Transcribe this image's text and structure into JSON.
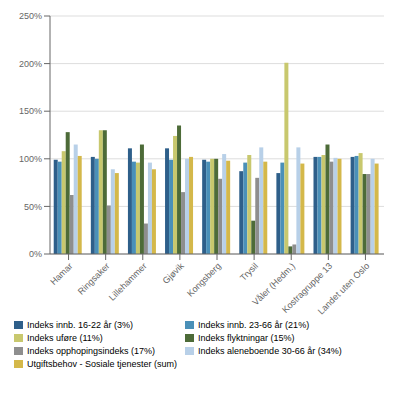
{
  "chart_data": {
    "type": "bar",
    "categories": [
      "Hamar",
      "Ringsaker",
      "Lillehammer",
      "Gjøvik",
      "Kongsberg",
      "Trysil",
      "Våler (Hedm.)",
      "Kostragruppe 13",
      "Landet uten Oslo"
    ],
    "series": [
      {
        "name": "Indeks innb. 16-22 år (3%)",
        "color": "#2E5F8A",
        "values": [
          99,
          102,
          111,
          111,
          99,
          87,
          85,
          102,
          102
        ]
      },
      {
        "name": "Indeks innb. 23-66 år (21%)",
        "color": "#4A90B8",
        "values": [
          97,
          100,
          97,
          99,
          97,
          96,
          96,
          102,
          103
        ]
      },
      {
        "name": "Indeks uføre (11%)",
        "color": "#C8C86E",
        "values": [
          108,
          130,
          96,
          124,
          100,
          104,
          201,
          104,
          106
        ]
      },
      {
        "name": "Indeks flyktningar (15%)",
        "color": "#4D6B38",
        "values": [
          128,
          130,
          115,
          135,
          100,
          35,
          8,
          115,
          84
        ]
      },
      {
        "name": "Indeks opphopingsindeks (17%)",
        "color": "#8E8E8E",
        "values": [
          62,
          51,
          32,
          65,
          79,
          80,
          10,
          97,
          84
        ]
      },
      {
        "name": "Indeks aleneboende 30-66 år (34%)",
        "color": "#B8D0E8",
        "values": [
          115,
          89,
          96,
          100,
          105,
          112,
          112,
          101,
          100
        ]
      },
      {
        "name": "Utgiftsbehov - Sosiale tjenester (sum)",
        "color": "#D4B84A",
        "values": [
          103,
          85,
          89,
          102,
          98,
          97,
          95,
          100,
          95
        ]
      }
    ],
    "ylim": [
      0,
      250
    ],
    "yticks": [
      {
        "value": 0,
        "label": "0%"
      },
      {
        "value": 50,
        "label": "50%"
      },
      {
        "value": 100,
        "label": "100%"
      },
      {
        "value": 150,
        "label": "150%"
      },
      {
        "value": 200,
        "label": "200%"
      },
      {
        "value": 250,
        "label": "250%"
      }
    ],
    "grid": true,
    "legend": "bottom"
  }
}
